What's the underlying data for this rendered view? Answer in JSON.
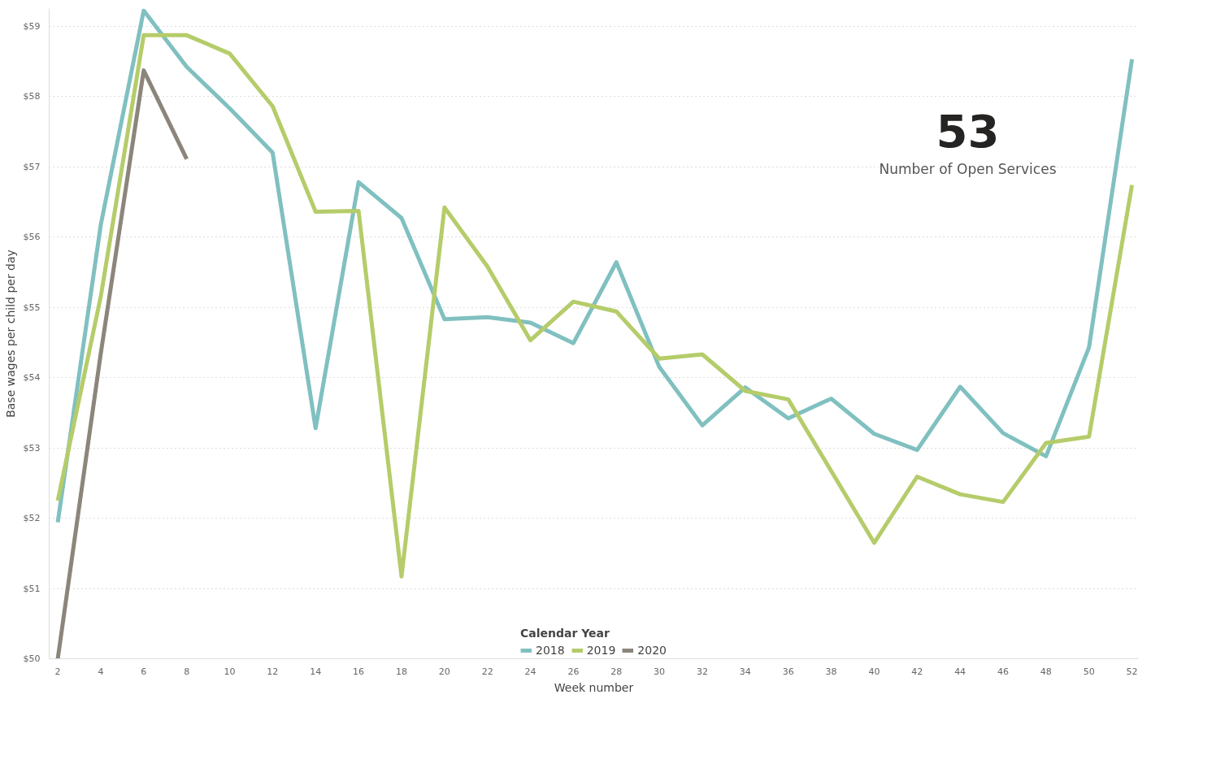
{
  "chart_data": {
    "type": "line",
    "xlabel": "Week number",
    "ylabel": "Base wages per child per day",
    "legend_title": "Calendar Year",
    "x": [
      2,
      4,
      6,
      8,
      10,
      12,
      14,
      16,
      18,
      20,
      22,
      24,
      26,
      28,
      30,
      32,
      34,
      36,
      38,
      40,
      42,
      44,
      46,
      48,
      50,
      52
    ],
    "series": [
      {
        "name": "2018",
        "color": "#80c0c0",
        "values": [
          51.94,
          56.17,
          59.22,
          58.42,
          57.83,
          57.2,
          53.28,
          56.78,
          56.27,
          54.83,
          54.86,
          54.78,
          54.49,
          55.64,
          54.15,
          53.32,
          53.86,
          53.42,
          53.7,
          53.2,
          52.97,
          53.87,
          53.21,
          52.88,
          54.43,
          58.53
        ]
      },
      {
        "name": "2019",
        "color": "#b5cc6a",
        "values": [
          52.25,
          55.15,
          58.87,
          58.87,
          58.61,
          57.86,
          56.36,
          56.37,
          51.17,
          56.42,
          55.58,
          54.53,
          55.08,
          54.94,
          54.27,
          54.33,
          53.81,
          53.69,
          52.67,
          51.65,
          52.59,
          52.34,
          52.23,
          53.07,
          53.16,
          56.74
        ]
      },
      {
        "name": "2020",
        "color": "#8c857b",
        "values": [
          50.0,
          54.34,
          58.37,
          57.11,
          null,
          null,
          null,
          null,
          null,
          null,
          null,
          null,
          null,
          null,
          null,
          null,
          null,
          null,
          null,
          null,
          null,
          null,
          null,
          null,
          null,
          null
        ]
      }
    ],
    "xlim": [
      1.6,
      52.3
    ],
    "xticks": [
      2,
      4,
      6,
      8,
      10,
      12,
      14,
      16,
      18,
      20,
      22,
      24,
      26,
      28,
      30,
      32,
      34,
      36,
      38,
      40,
      42,
      44,
      46,
      48,
      50,
      52
    ],
    "ylim": [
      50,
      59.25
    ],
    "yticks": [
      {
        "value": 50,
        "label": "$50"
      },
      {
        "value": 51,
        "label": "$51"
      },
      {
        "value": 52,
        "label": "$52"
      },
      {
        "value": 53,
        "label": "$53"
      },
      {
        "value": 54,
        "label": "$54"
      },
      {
        "value": 55,
        "label": "$55"
      },
      {
        "value": 56,
        "label": "$56"
      },
      {
        "value": 57,
        "label": "$57"
      },
      {
        "value": 58,
        "label": "$58"
      },
      {
        "value": 59,
        "label": "$59"
      }
    ],
    "grid": "y",
    "legend": "bottom",
    "line_style": "solid",
    "marker": "none",
    "annotations": [
      "53",
      "Number of Open Services"
    ]
  }
}
